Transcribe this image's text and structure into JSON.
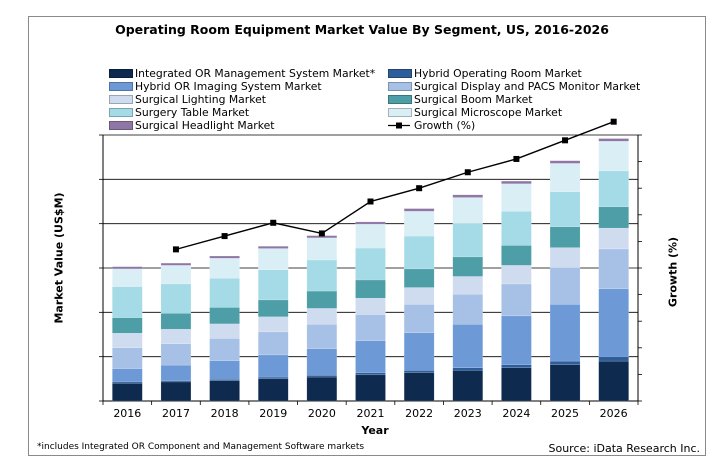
{
  "chart_data": {
    "type": "bar",
    "stacked": true,
    "title": "Operating Room Equipment Market Value By Segment, US, 2016-2026",
    "xlabel": "Year",
    "ylabel": "Market Value (US$M)",
    "y2label": "Growth (%)",
    "grid": "horizontal",
    "legend_position": "top",
    "categories": [
      "2016",
      "2017",
      "2018",
      "2019",
      "2020",
      "2021",
      "2022",
      "2023",
      "2024",
      "2025",
      "2026"
    ],
    "y_ticks": 6,
    "ylim": [
      0,
      6
    ],
    "y2_ticks": 10,
    "series": [
      {
        "name": "Integrated OR Management System Market*",
        "color": "#0e2a4e",
        "values": [
          0.4,
          0.43,
          0.46,
          0.5,
          0.54,
          0.59,
          0.64,
          0.69,
          0.75,
          0.82,
          0.9
        ]
      },
      {
        "name": "Hybrid Operating Room Market",
        "color": "#2d5d9a",
        "values": [
          0.03,
          0.03,
          0.03,
          0.04,
          0.04,
          0.05,
          0.05,
          0.06,
          0.07,
          0.08,
          0.1
        ]
      },
      {
        "name": "Hybrid OR Imaging System Market",
        "color": "#6d9ad6",
        "values": [
          0.3,
          0.35,
          0.42,
          0.5,
          0.6,
          0.72,
          0.85,
          0.98,
          1.1,
          1.28,
          1.53
        ]
      },
      {
        "name": "Surgical Display and PACS Monitor Market",
        "color": "#a7c1e6",
        "values": [
          0.47,
          0.48,
          0.5,
          0.52,
          0.55,
          0.59,
          0.64,
          0.68,
          0.72,
          0.83,
          0.9
        ]
      },
      {
        "name": "Surgical Lighting Market",
        "color": "#cfdcf0",
        "values": [
          0.33,
          0.33,
          0.33,
          0.34,
          0.36,
          0.37,
          0.38,
          0.4,
          0.42,
          0.45,
          0.47
        ]
      },
      {
        "name": "Surgical Boom Market",
        "color": "#4d9ea6",
        "values": [
          0.35,
          0.36,
          0.37,
          0.38,
          0.39,
          0.41,
          0.42,
          0.44,
          0.45,
          0.47,
          0.48
        ]
      },
      {
        "name": "Surgery Table Market",
        "color": "#a4dbe6",
        "values": [
          0.7,
          0.66,
          0.66,
          0.68,
          0.7,
          0.72,
          0.74,
          0.76,
          0.77,
          0.79,
          0.81
        ]
      },
      {
        "name": "Surgical Microscope Market",
        "color": "#daeef5",
        "values": [
          0.4,
          0.42,
          0.45,
          0.48,
          0.5,
          0.54,
          0.56,
          0.58,
          0.62,
          0.64,
          0.67
        ]
      },
      {
        "name": "Surgical Headlight Market",
        "color": "#8f77a5",
        "values": [
          0.05,
          0.05,
          0.05,
          0.05,
          0.05,
          0.05,
          0.06,
          0.06,
          0.06,
          0.06,
          0.06
        ]
      }
    ],
    "growth_series": {
      "name": "Growth (%)",
      "color": "#000000",
      "values": [
        null,
        5.7,
        6.2,
        6.7,
        6.3,
        7.5,
        8.0,
        8.6,
        9.1,
        9.8,
        10.5
      ],
      "ylim": [
        0,
        10
      ]
    }
  },
  "footnote": "*includes Integrated OR Component and Management Software markets",
  "source": "Source: iData Research Inc."
}
